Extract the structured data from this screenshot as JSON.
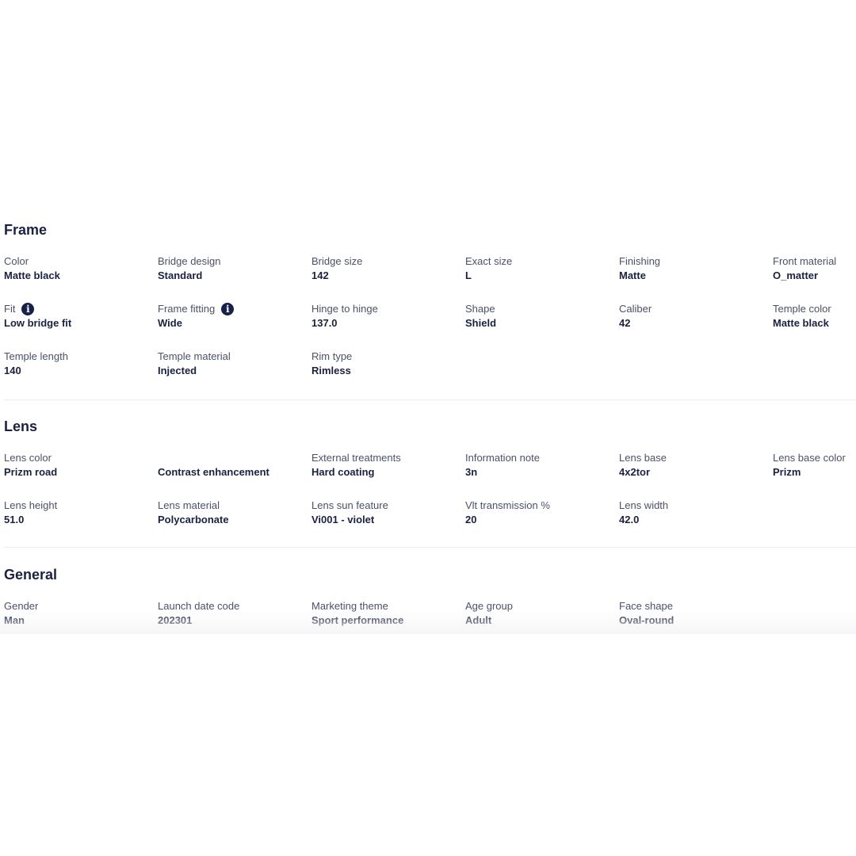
{
  "sections": [
    {
      "title": "Frame",
      "items": [
        {
          "label": "Color",
          "value": "Matte black"
        },
        {
          "label": "Bridge design",
          "value": "Standard"
        },
        {
          "label": "Bridge size",
          "value": "142"
        },
        {
          "label": "Exact size",
          "value": "L"
        },
        {
          "label": "Finishing",
          "value": "Matte"
        },
        {
          "label": "Front material",
          "value": "O_matter"
        },
        {
          "label": "Fit",
          "value": "Low bridge fit",
          "info": true
        },
        {
          "label": "Frame fitting",
          "value": "Wide",
          "info": true
        },
        {
          "label": "Hinge to hinge",
          "value": "137.0"
        },
        {
          "label": "Shape",
          "value": "Shield"
        },
        {
          "label": "Caliber",
          "value": "42"
        },
        {
          "label": "Temple color",
          "value": "Matte black"
        },
        {
          "label": "Temple length",
          "value": "140"
        },
        {
          "label": "Temple material",
          "value": "Injected"
        },
        {
          "label": "Rim type",
          "value": "Rimless"
        }
      ]
    },
    {
      "title": "Lens",
      "items": [
        {
          "label": "Lens color",
          "value": "Prizm road"
        },
        {
          "label": "",
          "value": "Contrast enhancement"
        },
        {
          "label": "External treatments",
          "value": "Hard coating"
        },
        {
          "label": "Information note",
          "value": "3n"
        },
        {
          "label": "Lens base",
          "value": "4x2tor"
        },
        {
          "label": "Lens base color",
          "value": "Prizm"
        },
        {
          "label": "Lens height",
          "value": "51.0"
        },
        {
          "label": "Lens material",
          "value": "Polycarbonate"
        },
        {
          "label": "Lens sun feature",
          "value": "Vi001 - violet"
        },
        {
          "label": "Vlt transmission %",
          "value": "20"
        },
        {
          "label": "Lens width",
          "value": "42.0"
        }
      ]
    },
    {
      "title": "General",
      "items": [
        {
          "label": "Gender",
          "value": "Man"
        },
        {
          "label": "Launch date code",
          "value": "202301"
        },
        {
          "label": "Marketing theme",
          "value": "Sport performance"
        },
        {
          "label": "Age group",
          "value": "Adult"
        },
        {
          "label": "Face shape",
          "value": "Oval-round"
        }
      ]
    }
  ],
  "icons": {
    "info": "info-circle-icon",
    "info_glyph": "i"
  },
  "colors": {
    "text": "#1a2240",
    "label": "#4b5168",
    "icon": "#16204a"
  }
}
